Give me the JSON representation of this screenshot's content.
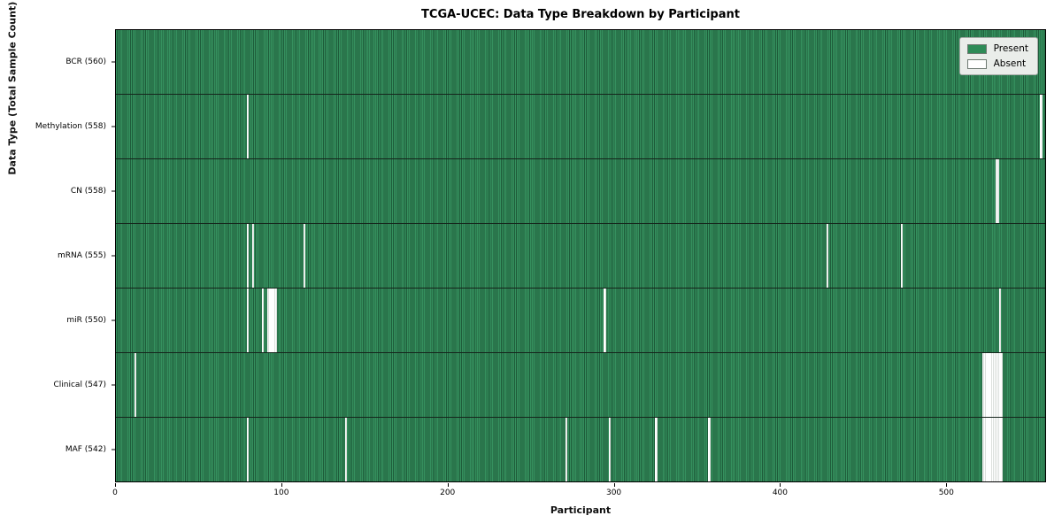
{
  "title": "TCGA-UCEC: Data Type Breakdown by Participant",
  "axes": {
    "x_label": "Participant",
    "y_label": "Data Type (Total Sample Count)"
  },
  "legend": {
    "items": [
      {
        "label": "Present",
        "color": "#2e8b57"
      },
      {
        "label": "Absent",
        "color": "#ffffff"
      }
    ]
  },
  "colors": {
    "present_fill": "#2e8b57",
    "present_edge": "#1e5c3a",
    "absent_fill": "#ffffff",
    "row_divider": "#15241b",
    "plot_border": "#000000",
    "legend_bg": "#eaedea"
  },
  "chart_data": {
    "type": "heatmap",
    "title": "TCGA-UCEC: Data Type Breakdown by Participant",
    "xlabel": "Participant",
    "ylabel": "Data Type (Total Sample Count)",
    "xlim": [
      0,
      560
    ],
    "x_ticks": [
      0,
      100,
      200,
      300,
      400,
      500
    ],
    "n_participants": 560,
    "grid": false,
    "legend_position": "upper right",
    "legend_entries": [
      "Present",
      "Absent"
    ],
    "value_encoding": {
      "present": "green cell",
      "absent": "white cell"
    },
    "rows": [
      {
        "label": "BCR (560)",
        "data_type": "BCR",
        "present_count": 560,
        "absent_participants": []
      },
      {
        "label": "Methylation (558)",
        "data_type": "Methylation",
        "present_count": 558,
        "absent_participants": [
          79,
          557
        ]
      },
      {
        "label": "CN (558)",
        "data_type": "CN",
        "present_count": 558,
        "absent_participants": [
          530,
          531
        ]
      },
      {
        "label": "mRNA (555)",
        "data_type": "mRNA",
        "present_count": 555,
        "absent_participants": [
          79,
          82,
          113,
          428,
          473
        ]
      },
      {
        "label": "miR (550)",
        "data_type": "miR",
        "present_count": 550,
        "absent_participants": [
          79,
          88,
          91,
          92,
          93,
          94,
          95,
          96,
          294,
          532
        ]
      },
      {
        "label": "Clinical (547)",
        "data_type": "Clinical",
        "present_count": 547,
        "absent_participants": [
          11,
          522,
          523,
          524,
          525,
          526,
          527,
          528,
          529,
          530,
          531,
          532,
          533
        ]
      },
      {
        "label": "MAF (542)",
        "data_type": "MAF",
        "present_count": 542,
        "absent_participants": [
          79,
          138,
          271,
          297,
          325,
          357,
          522,
          523,
          524,
          525,
          526,
          527,
          528,
          529,
          530,
          531,
          532,
          533
        ]
      }
    ]
  }
}
